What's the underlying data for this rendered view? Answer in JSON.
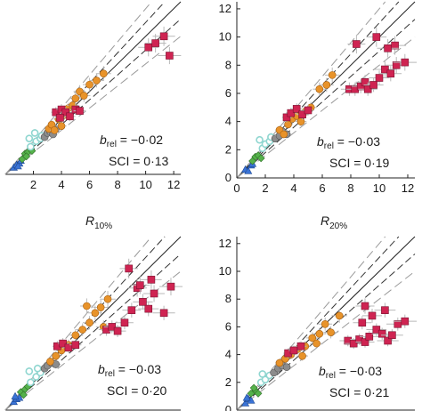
{
  "chart_data": [
    {
      "type": "scatter",
      "xlabel_main": "R",
      "xlabel_sub": "10%",
      "xlim": [
        0,
        12.5
      ],
      "ylim": [
        0,
        12.5
      ],
      "x_ticks": [
        "2",
        "4",
        "6",
        "8",
        "10",
        "12"
      ],
      "y_ticks": [],
      "b_rel": "−0·02",
      "sci": "0·13",
      "series": [
        {
          "color": "#3a73d6",
          "marker": "triangle",
          "points": [
            [
              0.6,
              0.5
            ],
            [
              0.8,
              0.7
            ],
            [
              1.0,
              0.8
            ],
            [
              1.1,
              1.0
            ],
            [
              0.9,
              0.6
            ]
          ]
        },
        {
          "color": "#55b24b",
          "marker": "diamond",
          "points": [
            [
              1.2,
              1.1
            ],
            [
              1.4,
              1.5
            ],
            [
              1.6,
              1.6
            ],
            [
              1.9,
              1.7
            ],
            [
              1.5,
              1.3
            ]
          ]
        },
        {
          "color": "#8fd6d0",
          "marker": "circle-open",
          "points": [
            [
              1.8,
              2.0
            ],
            [
              2.2,
              2.4
            ],
            [
              2.5,
              2.6
            ],
            [
              2.6,
              2.8
            ],
            [
              2.1,
              3.0
            ],
            [
              1.7,
              2.6
            ]
          ]
        },
        {
          "color": "#8c8c8c",
          "marker": "circle",
          "points": [
            [
              2.8,
              2.7
            ],
            [
              3.0,
              3.0
            ],
            [
              3.2,
              3.1
            ],
            [
              3.4,
              2.9
            ],
            [
              3.6,
              3.3
            ]
          ]
        },
        {
          "color": "#e8932a",
          "marker": "circle",
          "points": [
            [
              3.1,
              3.3
            ],
            [
              3.3,
              3.6
            ],
            [
              3.5,
              3.2
            ],
            [
              3.8,
              4.0
            ],
            [
              4.0,
              3.5
            ],
            [
              4.2,
              4.3
            ],
            [
              4.5,
              4.8
            ],
            [
              4.8,
              5.0
            ],
            [
              5.0,
              5.5
            ],
            [
              5.3,
              6.0
            ],
            [
              5.6,
              5.7
            ],
            [
              6.0,
              6.5
            ],
            [
              6.5,
              6.8
            ],
            [
              7.0,
              7.3
            ]
          ]
        },
        {
          "color": "#cf2452",
          "marker": "square",
          "points": [
            [
              3.6,
              4.5
            ],
            [
              4.0,
              4.7
            ],
            [
              4.3,
              4.5
            ],
            [
              4.6,
              4.2
            ],
            [
              5.0,
              4.7
            ],
            [
              5.3,
              4.6
            ],
            [
              3.9,
              4.1
            ],
            [
              10.2,
              9.2
            ],
            [
              10.7,
              9.5
            ],
            [
              11.3,
              10.0
            ],
            [
              11.7,
              8.6
            ]
          ]
        }
      ]
    },
    {
      "type": "scatter",
      "xlabel_main": "R",
      "xlabel_sub": "20%",
      "xlim": [
        0,
        12.5
      ],
      "ylim": [
        0,
        12.5
      ],
      "x_ticks": [
        "0",
        "2",
        "4",
        "6",
        "8",
        "10",
        "12"
      ],
      "y_ticks": [
        "0",
        "2",
        "4",
        "6",
        "8",
        "10",
        "12"
      ],
      "b_rel": "−0·03",
      "sci": "0·19",
      "series": [
        {
          "color": "#3a73d6",
          "marker": "triangle",
          "points": [
            [
              0.6,
              0.6
            ],
            [
              0.8,
              0.5
            ],
            [
              1.0,
              0.9
            ],
            [
              1.1,
              1.0
            ]
          ]
        },
        {
          "color": "#55b24b",
          "marker": "diamond",
          "points": [
            [
              1.1,
              1.2
            ],
            [
              1.3,
              1.5
            ],
            [
              1.5,
              1.6
            ],
            [
              1.7,
              1.4
            ]
          ]
        },
        {
          "color": "#8fd6d0",
          "marker": "circle-open",
          "points": [
            [
              1.8,
              2.1
            ],
            [
              2.0,
              2.4
            ],
            [
              2.3,
              2.6
            ],
            [
              1.6,
              2.7
            ],
            [
              2.4,
              2.9
            ]
          ]
        },
        {
          "color": "#8c8c8c",
          "marker": "circle",
          "points": [
            [
              2.7,
              2.8
            ],
            [
              3.0,
              3.0
            ],
            [
              3.2,
              3.3
            ],
            [
              3.5,
              3.1
            ]
          ]
        },
        {
          "color": "#e8932a",
          "marker": "circle",
          "points": [
            [
              3.0,
              3.4
            ],
            [
              3.3,
              3.1
            ],
            [
              3.6,
              3.8
            ],
            [
              3.9,
              4.2
            ],
            [
              4.2,
              4.4
            ],
            [
              4.5,
              4.0
            ],
            [
              4.8,
              4.7
            ],
            [
              5.2,
              5.0
            ],
            [
              5.8,
              6.3
            ],
            [
              6.3,
              6.6
            ],
            [
              6.7,
              7.3
            ]
          ]
        },
        {
          "color": "#cf2452",
          "marker": "square",
          "points": [
            [
              3.5,
              4.3
            ],
            [
              3.8,
              4.6
            ],
            [
              4.2,
              4.9
            ],
            [
              4.6,
              4.5
            ],
            [
              5.0,
              4.8
            ],
            [
              7.9,
              6.3
            ],
            [
              8.3,
              6.3
            ],
            [
              8.7,
              6.5
            ],
            [
              9.0,
              6.8
            ],
            [
              9.2,
              6.3
            ],
            [
              9.6,
              6.6
            ],
            [
              10.0,
              7.1
            ],
            [
              10.4,
              7.7
            ],
            [
              10.8,
              7.4
            ],
            [
              11.2,
              8.0
            ],
            [
              11.8,
              8.2
            ],
            [
              8.4,
              9.5
            ],
            [
              9.8,
              10.0
            ],
            [
              11.1,
              9.4
            ],
            [
              10.6,
              9.2
            ]
          ]
        }
      ]
    },
    {
      "type": "scatter",
      "xlim": [
        0,
        12.5
      ],
      "ylim": [
        0,
        12.5
      ],
      "x_ticks": [],
      "y_ticks": [],
      "b_rel": "−0·03",
      "sci": "0·20",
      "series": [
        {
          "color": "#3a73d6",
          "marker": "triangle",
          "points": [
            [
              0.6,
              0.6
            ],
            [
              0.8,
              0.8
            ],
            [
              1.0,
              0.9
            ],
            [
              0.7,
              1.0
            ]
          ]
        },
        {
          "color": "#55b24b",
          "marker": "diamond",
          "points": [
            [
              1.1,
              1.3
            ],
            [
              1.4,
              1.5
            ],
            [
              1.6,
              1.7
            ],
            [
              1.3,
              1.1
            ]
          ]
        },
        {
          "color": "#8fd6d0",
          "marker": "circle-open",
          "points": [
            [
              1.8,
              2.0
            ],
            [
              2.2,
              2.4
            ],
            [
              2.5,
              2.7
            ],
            [
              1.7,
              2.8
            ],
            [
              2.3,
              3.0
            ]
          ]
        },
        {
          "color": "#8c8c8c",
          "marker": "circle",
          "points": [
            [
              2.8,
              3.0
            ],
            [
              3.0,
              3.2
            ],
            [
              3.3,
              3.4
            ],
            [
              3.6,
              3.3
            ]
          ]
        },
        {
          "color": "#e8932a",
          "marker": "circle",
          "points": [
            [
              3.2,
              3.5
            ],
            [
              3.6,
              3.9
            ],
            [
              4.0,
              4.3
            ],
            [
              4.5,
              4.7
            ],
            [
              5.0,
              5.4
            ],
            [
              5.5,
              5.8
            ],
            [
              6.0,
              6.3
            ],
            [
              6.4,
              7.0
            ],
            [
              6.8,
              7.4
            ],
            [
              7.3,
              8.0
            ],
            [
              5.8,
              7.5
            ],
            [
              7.0,
              6.0
            ]
          ]
        },
        {
          "color": "#cf2452",
          "marker": "square",
          "points": [
            [
              3.7,
              4.6
            ],
            [
              4.1,
              4.8
            ],
            [
              4.5,
              4.5
            ],
            [
              5.0,
              4.7
            ],
            [
              7.2,
              5.8
            ],
            [
              7.6,
              6.0
            ],
            [
              8.0,
              5.7
            ],
            [
              8.5,
              6.3
            ],
            [
              9.0,
              7.2
            ],
            [
              9.4,
              8.8
            ],
            [
              9.8,
              7.8
            ],
            [
              10.2,
              7.3
            ],
            [
              10.6,
              8.4
            ],
            [
              11.3,
              7.0
            ],
            [
              11.8,
              8.9
            ],
            [
              8.8,
              10.2
            ],
            [
              9.6,
              9.0
            ],
            [
              10.4,
              9.4
            ]
          ]
        }
      ]
    },
    {
      "type": "scatter",
      "xlim": [
        0,
        12.5
      ],
      "ylim": [
        0,
        12.5
      ],
      "x_ticks": [],
      "y_ticks": [
        "0",
        "2",
        "4",
        "6",
        "8",
        "10",
        "12"
      ],
      "b_rel": "−0·03",
      "sci": "0·21",
      "series": [
        {
          "color": "#3a73d6",
          "marker": "triangle",
          "points": [
            [
              0.6,
              0.5
            ],
            [
              0.8,
              0.8
            ],
            [
              1.0,
              0.7
            ],
            [
              0.7,
              0.9
            ]
          ]
        },
        {
          "color": "#55b24b",
          "marker": "diamond",
          "points": [
            [
              1.0,
              1.2
            ],
            [
              1.3,
              1.4
            ],
            [
              1.5,
              1.2
            ],
            [
              1.2,
              1.6
            ]
          ]
        },
        {
          "color": "#8fd6d0",
          "marker": "circle-open",
          "points": [
            [
              1.7,
              2.0
            ],
            [
              2.0,
              2.2
            ],
            [
              2.3,
              2.5
            ],
            [
              1.8,
              2.6
            ]
          ]
        },
        {
          "color": "#8c8c8c",
          "marker": "circle",
          "points": [
            [
              2.6,
              2.7
            ],
            [
              2.9,
              3.0
            ],
            [
              3.2,
              3.2
            ],
            [
              3.5,
              3.1
            ]
          ]
        },
        {
          "color": "#e8932a",
          "marker": "circle",
          "points": [
            [
              3.0,
              3.4
            ],
            [
              3.4,
              3.7
            ],
            [
              3.8,
              4.0
            ],
            [
              4.3,
              4.4
            ],
            [
              4.8,
              4.6
            ],
            [
              5.3,
              5.2
            ],
            [
              5.8,
              5.5
            ],
            [
              6.2,
              6.2
            ],
            [
              6.6,
              5.6
            ],
            [
              7.2,
              6.8
            ],
            [
              5.6,
              4.8
            ],
            [
              4.6,
              3.9
            ]
          ]
        },
        {
          "color": "#cf2452",
          "marker": "square",
          "points": [
            [
              3.6,
              4.1
            ],
            [
              4.0,
              4.3
            ],
            [
              4.5,
              4.6
            ],
            [
              7.8,
              5.0
            ],
            [
              8.2,
              4.8
            ],
            [
              8.6,
              5.1
            ],
            [
              9.0,
              4.9
            ],
            [
              9.3,
              5.3
            ],
            [
              9.8,
              5.8
            ],
            [
              10.2,
              5.5
            ],
            [
              10.6,
              5.0
            ],
            [
              8.8,
              6.3
            ],
            [
              9.5,
              6.8
            ],
            [
              10.4,
              7.2
            ],
            [
              10.9,
              5.4
            ],
            [
              11.3,
              6.2
            ],
            [
              11.8,
              6.4
            ],
            [
              9.0,
              7.5
            ]
          ]
        }
      ]
    }
  ]
}
